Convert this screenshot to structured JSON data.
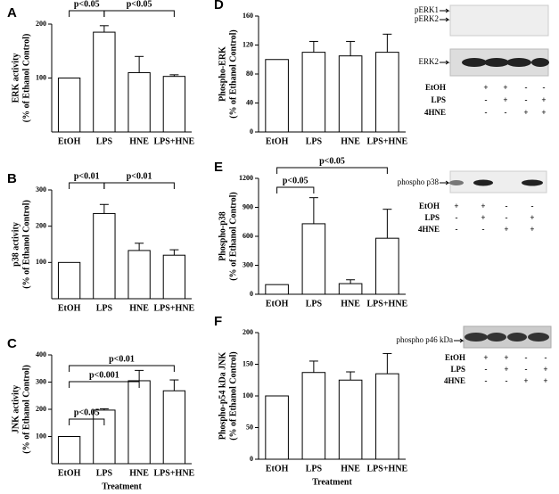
{
  "chart_data": [
    {
      "type": "bar",
      "panel": "A",
      "ylabel": [
        "ERK activity",
        "(% of Ethanol Control)"
      ],
      "categories": [
        "EtOH",
        "LPS",
        "HNE",
        "LPS+HNE"
      ],
      "values": [
        100,
        185,
        110,
        103
      ],
      "errors": [
        0,
        12,
        30,
        3
      ],
      "ylim": [
        0,
        200
      ],
      "yticks": [
        100,
        200
      ],
      "annotations": [
        "p<0.05",
        "p<0.05"
      ],
      "color": "#ffffff"
    },
    {
      "type": "bar",
      "panel": "B",
      "ylabel": [
        "p38 activity",
        "(% of Ethanol Control)"
      ],
      "categories": [
        "EtOH",
        "LPS",
        "HNE",
        "LPS+HNE"
      ],
      "values": [
        100,
        235,
        133,
        120
      ],
      "errors": [
        0,
        25,
        20,
        15
      ],
      "ylim": [
        0,
        300
      ],
      "yticks": [
        100,
        200,
        300
      ],
      "annotations": [
        "p<0.01",
        "p<0.01"
      ],
      "color": "#ffffff"
    },
    {
      "type": "bar",
      "panel": "C",
      "ylabel": [
        "JNK activity",
        "(% of Ethanol Control)"
      ],
      "xlabel": "Treatment",
      "categories": [
        "EtOH",
        "LPS",
        "HNE",
        "LPS+HNE"
      ],
      "values": [
        100,
        197,
        305,
        268
      ],
      "errors": [
        0,
        5,
        38,
        40
      ],
      "ylim": [
        0,
        400
      ],
      "yticks": [
        100,
        200,
        300,
        400
      ],
      "annotations": [
        "p<0.05",
        "p<0.001",
        "p<0.01"
      ],
      "color": "#ffffff"
    },
    {
      "type": "bar",
      "panel": "D",
      "ylabel": [
        "Phospho-ERK",
        "(% of Ethanol Control)"
      ],
      "categories": [
        "EtOH",
        "LPS",
        "HNE",
        "LPS+HNE"
      ],
      "values": [
        100,
        110,
        105,
        110
      ],
      "errors": [
        0,
        15,
        20,
        25
      ],
      "ylim": [
        0,
        160
      ],
      "yticks": [
        0,
        40,
        80,
        120,
        160
      ],
      "annotations": [],
      "color": "#ffffff"
    },
    {
      "type": "bar",
      "panel": "E",
      "ylabel": [
        "Phospho-p38",
        "(% of Ethanol Control)"
      ],
      "categories": [
        "EtOH",
        "LPS",
        "HNE",
        "LPS+HNE"
      ],
      "values": [
        100,
        730,
        110,
        580
      ],
      "errors": [
        0,
        270,
        40,
        300
      ],
      "ylim": [
        0,
        1200
      ],
      "yticks": [
        0,
        300,
        600,
        900,
        1200
      ],
      "annotations": [
        "p<0.05",
        "p<0.05"
      ],
      "color": "#ffffff"
    },
    {
      "type": "bar",
      "panel": "F",
      "ylabel": [
        "Phospho-p54 kDa JNK",
        "(% of Ethanol Control)"
      ],
      "xlabel": "Treatment",
      "categories": [
        "EtOH",
        "LPS",
        "HNE",
        "LPS+HNE"
      ],
      "values": [
        100,
        137,
        125,
        135
      ],
      "errors": [
        0,
        18,
        13,
        32
      ],
      "ylim": [
        0,
        200
      ],
      "yticks": [
        0,
        50,
        100,
        150,
        200
      ],
      "annotations": [],
      "color": "#ffffff"
    }
  ],
  "blots": [
    {
      "labels": [
        "pERK1",
        "pERK2",
        "ERK2"
      ],
      "rows": [
        {
          "name": "EtOH",
          "marks": [
            "+",
            "+",
            "-",
            "-"
          ]
        },
        {
          "name": "LPS",
          "marks": [
            "-",
            "+",
            "-",
            "+"
          ]
        },
        {
          "name": "4HNE",
          "marks": [
            "-",
            "-",
            "+",
            "+"
          ]
        }
      ]
    },
    {
      "labels": [
        "phospho p38"
      ],
      "rows": [
        {
          "name": "EtOH",
          "marks": [
            "+",
            "+",
            "-",
            "-"
          ]
        },
        {
          "name": "LPS",
          "marks": [
            "-",
            "+",
            "-",
            "+"
          ]
        },
        {
          "name": "4HNE",
          "marks": [
            "-",
            "-",
            "+",
            "+"
          ]
        }
      ]
    },
    {
      "labels": [
        "phospho p46 kDa"
      ],
      "rows": [
        {
          "name": "EtOH",
          "marks": [
            "+",
            "+",
            "-",
            "-"
          ]
        },
        {
          "name": "LPS",
          "marks": [
            "-",
            "+",
            "-",
            "+"
          ]
        },
        {
          "name": "4HNE",
          "marks": [
            "-",
            "-",
            "+",
            "+"
          ]
        }
      ]
    }
  ]
}
